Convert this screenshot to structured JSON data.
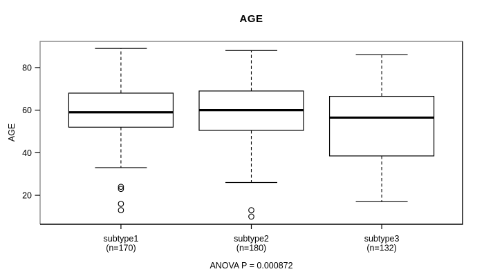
{
  "chart_data": {
    "type": "boxplot",
    "title": "AGE",
    "xlabel": "",
    "ylabel": "AGE",
    "annotation": "ANOVA P = 0.000872",
    "yticks": [
      20,
      40,
      60,
      80
    ],
    "ylim": [
      6.4,
      92.3
    ],
    "grid": false,
    "legend": false,
    "groups": [
      {
        "label": "subtype1",
        "sublabel": "(n=170)",
        "whisker_low": 33,
        "q1": 52,
        "median": 59,
        "q3": 68,
        "whisker_high": 89,
        "outliers": [
          24,
          23,
          16,
          13
        ]
      },
      {
        "label": "subtype2",
        "sublabel": "(n=180)",
        "whisker_low": 26,
        "q1": 50.5,
        "median": 60,
        "q3": 69,
        "whisker_high": 88,
        "outliers": [
          13,
          10
        ]
      },
      {
        "label": "subtype3",
        "sublabel": "(n=132)",
        "whisker_low": 17,
        "q1": 38.5,
        "median": 56.5,
        "q3": 66.5,
        "whisker_high": 86,
        "outliers": []
      }
    ]
  }
}
